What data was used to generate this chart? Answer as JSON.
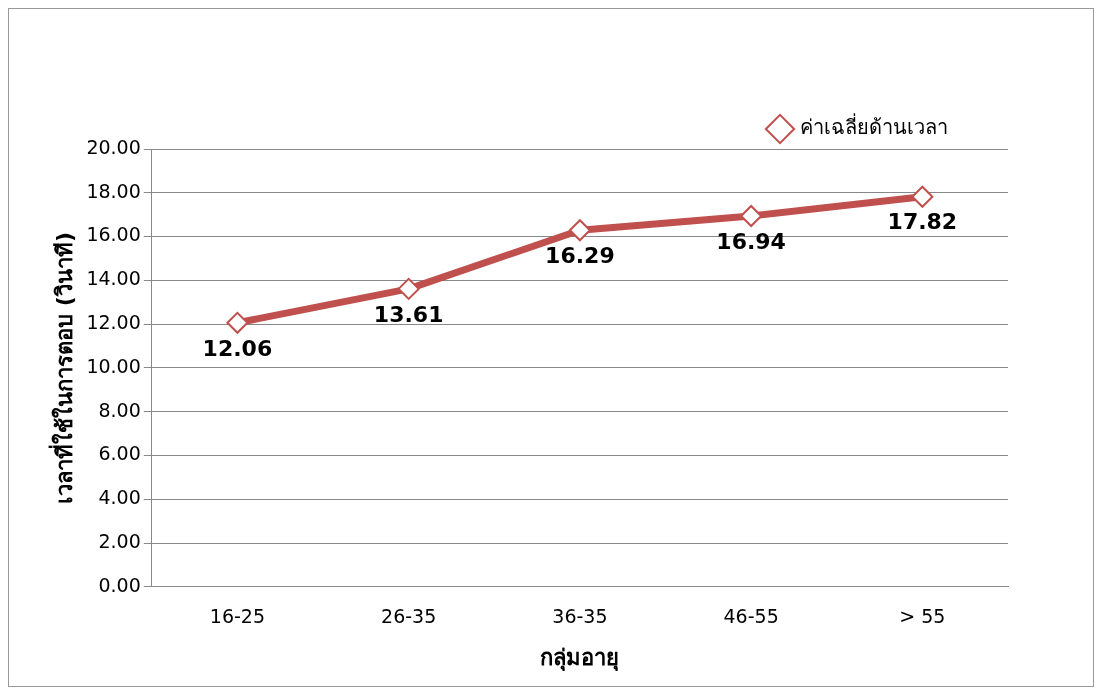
{
  "chart_data": {
    "type": "line",
    "xlabel": "กลุ่มอายุ",
    "ylabel": "เวลาที่ใช้ในการตอบ (วินาที)",
    "categories": [
      "16-25",
      "26-35",
      "36-35",
      "46-55",
      "> 55"
    ],
    "series": [
      {
        "name": "ค่าเฉลี่ยด้านเวลา",
        "color": "#c0504d",
        "values": [
          12.06,
          13.61,
          16.29,
          16.94,
          17.82
        ]
      }
    ],
    "ylim": [
      0,
      20
    ],
    "yticks": [
      {
        "value": 0,
        "label": "0.00"
      },
      {
        "value": 2,
        "label": "2.00"
      },
      {
        "value": 4,
        "label": "4.00"
      },
      {
        "value": 6,
        "label": "6.00"
      },
      {
        "value": 8,
        "label": "8.00"
      },
      {
        "value": 10,
        "label": "10.00"
      },
      {
        "value": 12,
        "label": "12.00"
      },
      {
        "value": 14,
        "label": "14.00"
      },
      {
        "value": 16,
        "label": "16.00"
      },
      {
        "value": 18,
        "label": "18.00"
      },
      {
        "value": 20,
        "label": "20.00"
      }
    ],
    "grid": "y",
    "legend": "top right",
    "marker": "diamond",
    "line_style": "solid",
    "data_labels": true
  }
}
